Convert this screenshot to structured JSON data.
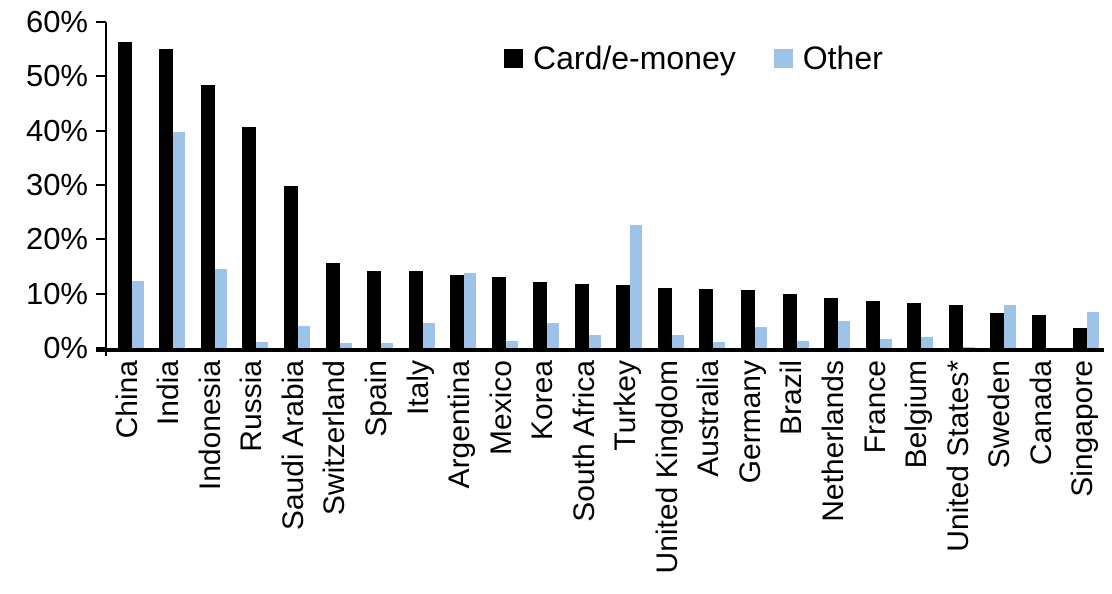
{
  "chart_data": {
    "type": "bar",
    "title": "",
    "xlabel": "",
    "ylabel": "",
    "ylim": [
      0,
      60
    ],
    "grid": false,
    "legend_position": "top-center",
    "categories": [
      "China",
      "India",
      "Indonesia",
      "Russia",
      "Saudi Arabia",
      "Switzerland",
      "Spain",
      "Italy",
      "Argentina",
      "Mexico",
      "Korea",
      "South Africa",
      "Turkey",
      "United Kingdom",
      "Australia",
      "Germany",
      "Brazil",
      "Netherlands",
      "France",
      "Belgium",
      "United States*",
      "Sweden",
      "Canada",
      "Singapore"
    ],
    "series": [
      {
        "name": "Card/e-money",
        "color": "#000000",
        "values": [
          56.3,
          55.0,
          48.4,
          40.6,
          29.8,
          15.7,
          14.2,
          14.1,
          13.4,
          13.0,
          12.2,
          11.8,
          11.6,
          11.1,
          10.8,
          10.7,
          10.0,
          9.2,
          8.7,
          8.2,
          7.9,
          6.5,
          6.0,
          3.7
        ]
      },
      {
        "name": "Other",
        "color": "#9DC3E6",
        "values": [
          12.4,
          39.7,
          14.6,
          1.1,
          4.0,
          0.9,
          1.0,
          4.6,
          13.8,
          1.3,
          4.6,
          2.4,
          22.6,
          2.4,
          1.1,
          3.8,
          1.2,
          5.0,
          1.7,
          2.0,
          0.2,
          8.0,
          0.0,
          6.6
        ]
      }
    ],
    "y_ticks": [
      {
        "value": 0,
        "label": "0%"
      },
      {
        "value": 10,
        "label": "10%"
      },
      {
        "value": 20,
        "label": "20%"
      },
      {
        "value": 30,
        "label": "30%"
      },
      {
        "value": 40,
        "label": "40%"
      },
      {
        "value": 50,
        "label": "50%"
      },
      {
        "value": 60,
        "label": "60%"
      }
    ]
  },
  "legend": {
    "card_label": "Card/e-money",
    "other_label": "Other"
  },
  "colors": {
    "card": "#000000",
    "other": "#9DC3E6",
    "axis": "#000000",
    "background": "#FFFFFF"
  }
}
